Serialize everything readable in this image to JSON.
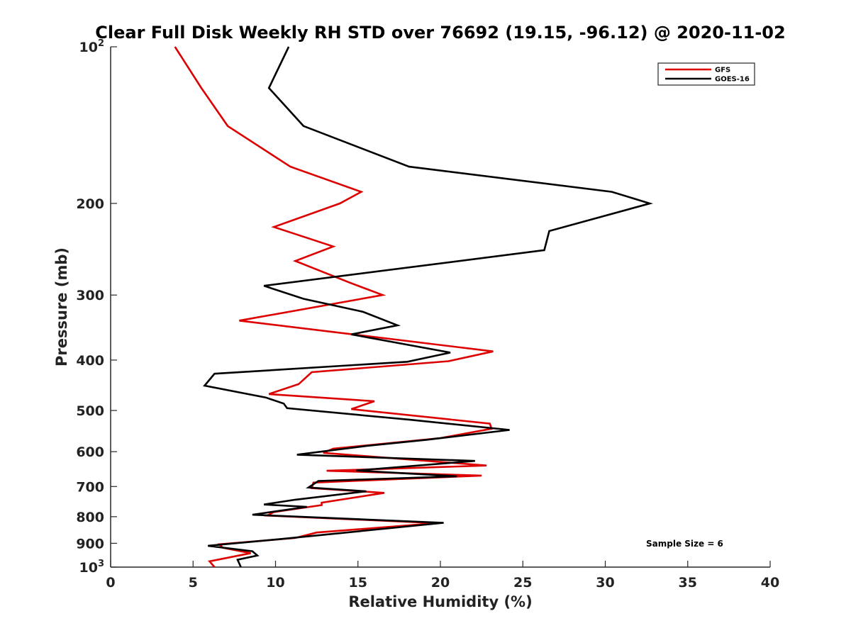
{
  "chart_data": {
    "type": "line",
    "title": "Clear Full Disk Weekly RH STD over 76692 (19.15, -96.12) @ 2020-11-02",
    "xlabel": "Relative Humidity (%)",
    "ylabel": "Pressure (mb)",
    "xlim": [
      0,
      40
    ],
    "ylim": [
      100,
      1000
    ],
    "yscale": "log",
    "y_reversed": true,
    "grid": false,
    "x_ticks": [
      0,
      5,
      10,
      15,
      20,
      25,
      30,
      35,
      40
    ],
    "x_tick_labels": [
      "0",
      "5",
      "10",
      "15",
      "20",
      "25",
      "30",
      "35",
      "40"
    ],
    "y_ticks": [
      100,
      200,
      300,
      400,
      500,
      600,
      700,
      800,
      900,
      1000
    ],
    "y_tick_labels": [
      {
        "base": "10",
        "exp": "2"
      },
      {
        "base": "200",
        "exp": ""
      },
      {
        "base": "300",
        "exp": ""
      },
      {
        "base": "400",
        "exp": ""
      },
      {
        "base": "500",
        "exp": ""
      },
      {
        "base": "600",
        "exp": ""
      },
      {
        "base": "700",
        "exp": ""
      },
      {
        "base": "800",
        "exp": ""
      },
      {
        "base": "900",
        "exp": ""
      },
      {
        "base": "10",
        "exp": "3"
      }
    ],
    "legend": {
      "placement": "top-right",
      "entries": [
        "GFS",
        "GOES-16"
      ]
    },
    "annotation": "Sample Size = 6",
    "series": [
      {
        "name": "GFS",
        "color": "#dd0000",
        "points": [
          [
            3.9,
            100
          ],
          [
            5.5,
            120
          ],
          [
            7.1,
            142
          ],
          [
            10.9,
            170
          ],
          [
            15.2,
            190
          ],
          [
            13.9,
            200
          ],
          [
            9.9,
            222
          ],
          [
            13.5,
            242
          ],
          [
            11.2,
            258
          ],
          [
            14.5,
            284
          ],
          [
            16.5,
            300
          ],
          [
            7.8,
            336
          ],
          [
            23.2,
            385
          ],
          [
            20.5,
            402
          ],
          [
            12.2,
            422
          ],
          [
            11.4,
            445
          ],
          [
            9.6,
            465
          ],
          [
            16.0,
            480
          ],
          [
            14.6,
            497
          ],
          [
            23.0,
            530
          ],
          [
            23.1,
            542
          ],
          [
            20.0,
            565
          ],
          [
            13.5,
            592
          ],
          [
            12.9,
            603
          ],
          [
            22.8,
            638
          ],
          [
            13.1,
            653
          ],
          [
            22.5,
            667
          ],
          [
            12.3,
            688
          ],
          [
            12.2,
            705
          ],
          [
            16.6,
            720
          ],
          [
            12.8,
            752
          ],
          [
            12.8,
            760
          ],
          [
            9.9,
            784
          ],
          [
            9.5,
            796
          ],
          [
            19.8,
            823
          ],
          [
            12.5,
            858
          ],
          [
            11.2,
            879
          ],
          [
            6.6,
            904
          ],
          [
            6.8,
            918
          ],
          [
            8.5,
            940
          ],
          [
            6.0,
            975
          ],
          [
            6.3,
            1000
          ]
        ]
      },
      {
        "name": "GOES-16",
        "color": "#000000",
        "points": [
          [
            10.8,
            100
          ],
          [
            9.6,
            120
          ],
          [
            11.7,
            142
          ],
          [
            18.1,
            170
          ],
          [
            30.4,
            190
          ],
          [
            32.7,
            200
          ],
          [
            26.6,
            226
          ],
          [
            26.3,
            246
          ],
          [
            9.3,
            288
          ],
          [
            11.7,
            305
          ],
          [
            15.3,
            323
          ],
          [
            17.4,
            343
          ],
          [
            14.6,
            357
          ],
          [
            20.6,
            387
          ],
          [
            18.0,
            403
          ],
          [
            6.3,
            425
          ],
          [
            5.7,
            448
          ],
          [
            9.4,
            472
          ],
          [
            10.5,
            485
          ],
          [
            10.7,
            495
          ],
          [
            18.2,
            521
          ],
          [
            24.2,
            545
          ],
          [
            19.2,
            569
          ],
          [
            15.5,
            585
          ],
          [
            11.3,
            608
          ],
          [
            22.1,
            625
          ],
          [
            14.9,
            652
          ],
          [
            21.0,
            669
          ],
          [
            12.6,
            683
          ],
          [
            12.0,
            703
          ],
          [
            15.5,
            715
          ],
          [
            11.2,
            742
          ],
          [
            9.3,
            758
          ],
          [
            11.9,
            766
          ],
          [
            8.6,
            793
          ],
          [
            20.2,
            822
          ],
          [
            10.2,
            884
          ],
          [
            5.9,
            910
          ],
          [
            8.6,
            932
          ],
          [
            8.9,
            950
          ],
          [
            7.7,
            968
          ],
          [
            7.9,
            1000
          ]
        ]
      }
    ]
  }
}
